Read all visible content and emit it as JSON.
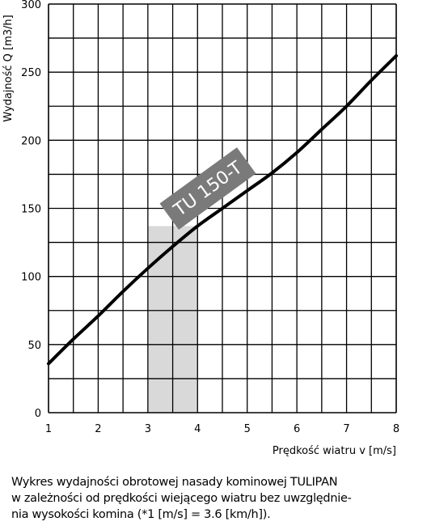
{
  "chart_data": {
    "type": "line",
    "title": "",
    "xlabel": "Prędkość wiatru v [m/s]",
    "ylabel": "Wydajność Q [m3/h]",
    "xlim": [
      1,
      8
    ],
    "ylim": [
      0,
      300
    ],
    "x_ticks": [
      1,
      2,
      3,
      4,
      5,
      6,
      7,
      8
    ],
    "y_ticks": [
      0,
      50,
      100,
      150,
      200,
      250,
      300
    ],
    "grid": true,
    "series": [
      {
        "name": "TU 150-T",
        "x": [
          1.0,
          1.5,
          2.0,
          2.5,
          3.0,
          3.5,
          4.0,
          4.5,
          5.0,
          5.5,
          6.0,
          6.5,
          7.0,
          7.5,
          8.0
        ],
        "y": [
          36,
          54,
          71,
          89,
          106,
          122,
          137,
          150,
          163,
          176,
          191,
          208,
          225,
          244,
          262
        ]
      }
    ],
    "highlight_band": {
      "x_from": 3,
      "x_to": 4
    },
    "label_tag": "TU 150-T",
    "colors": {
      "line": "#000000",
      "grid": "#000000",
      "band": "#d9d9d9",
      "tag": "#7a7a7a"
    }
  },
  "caption": [
    "Wykres wydajności obrotowej nasady kominowej TULIPAN",
    "w zależności od prędkości wiejącego wiatru bez uwzględnie-",
    "nia wysokości komina  (*1 [m/s] = 3.6 [km/h])."
  ]
}
